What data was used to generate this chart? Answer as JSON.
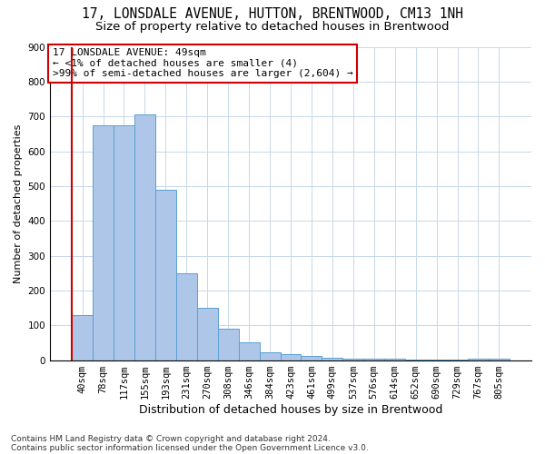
{
  "title1": "17, LONSDALE AVENUE, HUTTON, BRENTWOOD, CM13 1NH",
  "title2": "Size of property relative to detached houses in Brentwood",
  "xlabel": "Distribution of detached houses by size in Brentwood",
  "ylabel": "Number of detached properties",
  "categories": [
    "40sqm",
    "78sqm",
    "117sqm",
    "155sqm",
    "193sqm",
    "231sqm",
    "270sqm",
    "308sqm",
    "346sqm",
    "384sqm",
    "423sqm",
    "461sqm",
    "499sqm",
    "537sqm",
    "576sqm",
    "614sqm",
    "652sqm",
    "690sqm",
    "729sqm",
    "767sqm",
    "805sqm"
  ],
  "values": [
    130,
    675,
    675,
    705,
    490,
    250,
    150,
    90,
    50,
    22,
    18,
    12,
    8,
    5,
    4,
    3,
    2,
    1,
    1,
    5,
    5
  ],
  "bar_color": "#aec6e8",
  "bar_edge_color": "#5a9fd4",
  "annotation_title": "17 LONSDALE AVENUE: 49sqm",
  "annotation_line2": "← <1% of detached houses are smaller (4)",
  "annotation_line3": ">99% of semi-detached houses are larger (2,604) →",
  "annotation_box_color": "#ffffff",
  "annotation_box_edge_color": "#cc0000",
  "ylim": [
    0,
    900
  ],
  "yticks": [
    0,
    100,
    200,
    300,
    400,
    500,
    600,
    700,
    800,
    900
  ],
  "footnote1": "Contains HM Land Registry data © Crown copyright and database right 2024.",
  "footnote2": "Contains public sector information licensed under the Open Government Licence v3.0.",
  "bg_color": "#ffffff",
  "grid_color": "#c8d8e8",
  "title1_fontsize": 10.5,
  "title2_fontsize": 9.5,
  "xlabel_fontsize": 9,
  "ylabel_fontsize": 8,
  "tick_fontsize": 7.5,
  "annotation_fontsize": 8,
  "footnote_fontsize": 6.5
}
